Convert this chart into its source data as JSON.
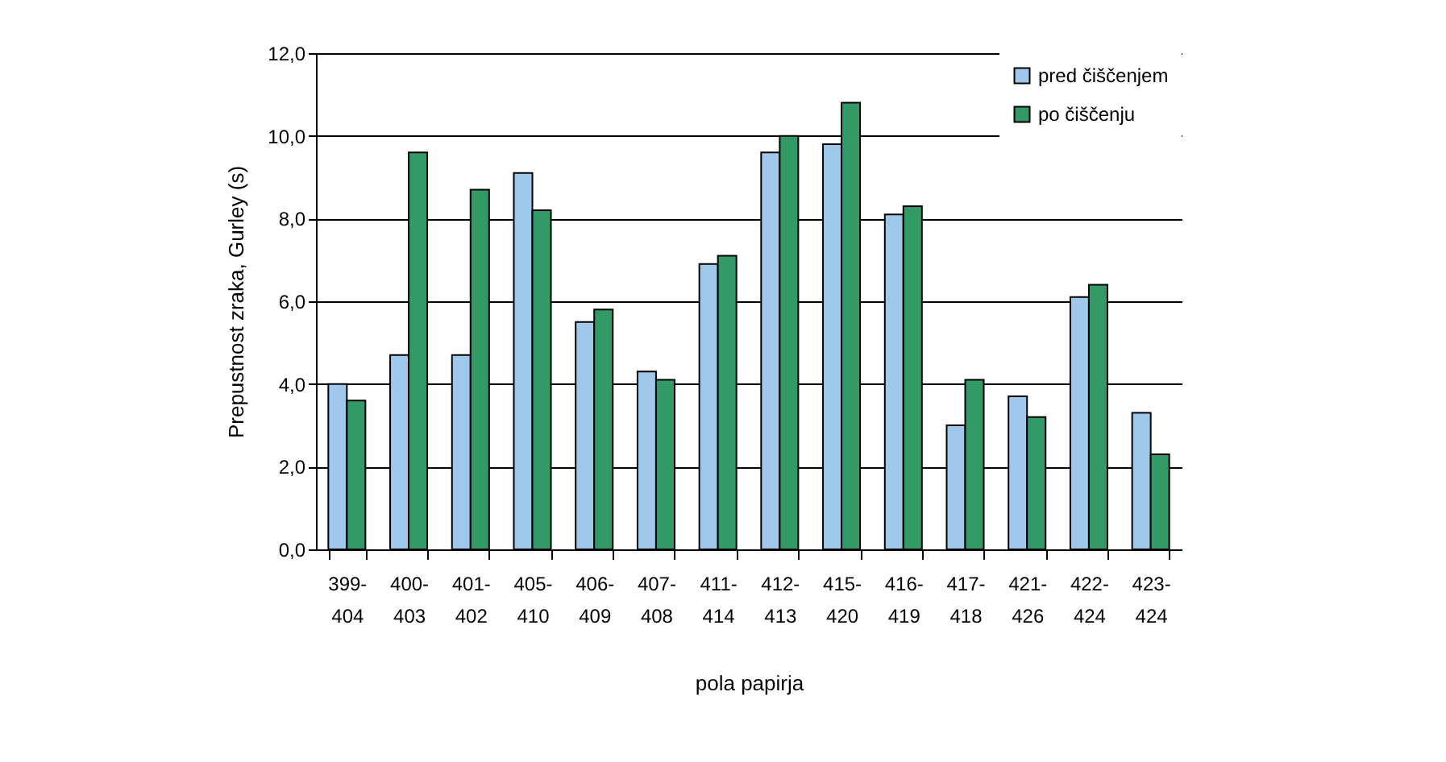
{
  "chart_data": {
    "type": "bar",
    "xlabel": "pola papirja",
    "ylabel": "Prepustnost zraka, Gurley (s)",
    "categories": [
      "399-404",
      "400-403",
      "401-402",
      "405-410",
      "406-409",
      "407-408",
      "411-414",
      "412-413",
      "415-420",
      "416-419",
      "417-418",
      "421-426",
      "422-424",
      "423-424"
    ],
    "series": [
      {
        "name": "pred čiščenjem",
        "color": "#9fc8ea",
        "values": [
          4.0,
          4.7,
          4.7,
          9.1,
          5.5,
          4.3,
          6.9,
          9.6,
          9.8,
          8.1,
          3.0,
          3.7,
          6.1,
          3.3
        ]
      },
      {
        "name": "po čiščenju",
        "color": "#339966",
        "values": [
          3.6,
          9.6,
          8.7,
          8.2,
          5.8,
          4.1,
          7.1,
          10.0,
          10.8,
          8.3,
          4.1,
          3.2,
          6.4,
          2.3
        ]
      }
    ],
    "ylim": [
      0,
      12
    ],
    "yticks": [
      {
        "value": 0,
        "label": "0,0"
      },
      {
        "value": 2,
        "label": "2,0"
      },
      {
        "value": 4,
        "label": "4,0"
      },
      {
        "value": 6,
        "label": "6,0"
      },
      {
        "value": 8,
        "label": "8,0"
      },
      {
        "value": 10,
        "label": "10,0"
      },
      {
        "value": 12,
        "label": "12,0"
      }
    ],
    "grid": "y",
    "legend": "top right"
  }
}
